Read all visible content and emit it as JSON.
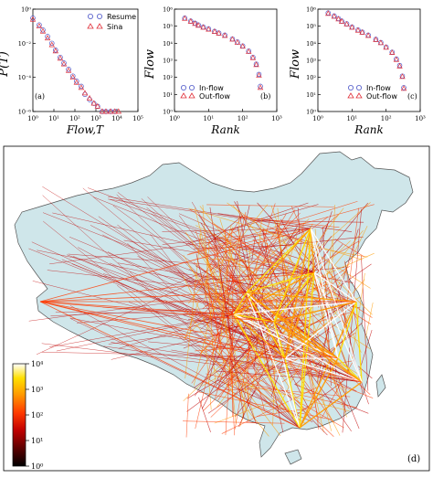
{
  "chart_data": [
    {
      "panel": "(a)",
      "type": "scatter",
      "xlabel": "Flow,T",
      "ylabel": "P(T)",
      "xscale": "log",
      "yscale": "log",
      "xlim": [
        1,
        100000
      ],
      "ylim": [
        1e-06,
        1
      ],
      "xticks": [
        "10⁰",
        "10¹",
        "10²",
        "10³",
        "10⁴",
        "10⁵"
      ],
      "yticks": [
        "10⁻⁶",
        "10⁻⁴",
        "10⁻²",
        "10⁰"
      ],
      "legend_position": "top-right",
      "series": [
        {
          "name": "Resume",
          "marker": "circle",
          "color": "#4b55c8",
          "x": [
            1,
            2,
            3,
            5,
            8,
            12,
            20,
            30,
            50,
            80,
            120,
            200,
            300,
            500,
            800,
            1200,
            2000,
            3000,
            5000,
            8000
          ],
          "y": [
            0.3,
            0.12,
            0.06,
            0.025,
            0.01,
            0.004,
            0.0015,
            0.0007,
            0.0003,
            0.00012,
            6e-05,
            3e-05,
            1e-05,
            5e-06,
            3e-06,
            2e-06,
            1e-06,
            1e-06,
            1e-06,
            1e-06
          ]
        },
        {
          "name": "Sina",
          "marker": "triangle",
          "color": "#e0303a",
          "x": [
            1,
            2,
            3,
            5,
            8,
            12,
            20,
            30,
            50,
            80,
            120,
            200,
            300,
            500,
            800,
            1200,
            2000,
            3000,
            5000,
            8000,
            12000
          ],
          "y": [
            0.25,
            0.1,
            0.05,
            0.02,
            0.008,
            0.0035,
            0.0013,
            0.0006,
            0.00025,
            0.0001,
            5e-05,
            2.5e-05,
            1.2e-05,
            6e-06,
            3e-06,
            2e-06,
            1e-06,
            1e-06,
            1e-06,
            1e-06,
            1e-06
          ]
        }
      ]
    },
    {
      "panel": "(b)",
      "type": "scatter",
      "xlabel": "Rank",
      "ylabel": "Flow",
      "xscale": "log",
      "yscale": "log",
      "xlim": [
        1,
        1000
      ],
      "ylim": [
        1,
        1000000
      ],
      "xticks": [
        "10⁰",
        "10¹",
        "10²",
        "10³"
      ],
      "yticks": [
        "10⁰",
        "10¹",
        "10²",
        "10³",
        "10⁴",
        "10⁵",
        "10⁶"
      ],
      "legend_position": "bottom-left",
      "series": [
        {
          "name": "In-flow",
          "marker": "circle",
          "color": "#4b55c8",
          "x": [
            2,
            3,
            4,
            5,
            7,
            10,
            15,
            20,
            30,
            50,
            70,
            100,
            150,
            200,
            250,
            300,
            330
          ],
          "y": [
            300000,
            200000,
            150000,
            120000,
            90000,
            70000,
            50000,
            40000,
            30000,
            18000,
            12000,
            7000,
            3500,
            1500,
            600,
            150,
            30
          ]
        },
        {
          "name": "Out-flow",
          "marker": "triangle",
          "color": "#e0303a",
          "x": [
            2,
            3,
            4,
            5,
            7,
            10,
            15,
            20,
            30,
            50,
            70,
            100,
            150,
            200,
            250,
            300,
            330
          ],
          "y": [
            280000,
            190000,
            140000,
            110000,
            85000,
            65000,
            48000,
            38000,
            28000,
            17000,
            11000,
            6500,
            3200,
            1400,
            550,
            130,
            25
          ]
        }
      ]
    },
    {
      "panel": "(c)",
      "type": "scatter",
      "xlabel": "Rank",
      "ylabel": "Flow",
      "xscale": "log",
      "yscale": "log",
      "xlim": [
        1,
        1000
      ],
      "ylim": [
        1,
        1000000
      ],
      "xticks": [
        "10⁰",
        "10¹",
        "10²",
        "10³"
      ],
      "yticks": [
        "10⁰",
        "10¹",
        "10²",
        "10³",
        "10⁴",
        "10⁵",
        "10⁶"
      ],
      "legend_position": "bottom-right",
      "series": [
        {
          "name": "In-flow",
          "marker": "circle",
          "color": "#4b55c8",
          "x": [
            2,
            3,
            4,
            5,
            7,
            10,
            15,
            20,
            30,
            50,
            70,
            100,
            150,
            200,
            250,
            300,
            330
          ],
          "y": [
            600000,
            400000,
            280000,
            200000,
            140000,
            90000,
            60000,
            45000,
            30000,
            17000,
            11000,
            6000,
            3000,
            1200,
            500,
            120,
            25
          ]
        },
        {
          "name": "Out-flow",
          "marker": "triangle",
          "color": "#e0303a",
          "x": [
            2,
            3,
            4,
            5,
            7,
            10,
            15,
            20,
            30,
            50,
            70,
            100,
            150,
            200,
            250,
            300,
            330
          ],
          "y": [
            550000,
            370000,
            260000,
            190000,
            130000,
            85000,
            57000,
            43000,
            28000,
            16000,
            10500,
            5700,
            2800,
            1100,
            450,
            110,
            22
          ]
        }
      ]
    },
    {
      "panel": "(d)",
      "type": "heatmap",
      "description_kind": "flow-network-map",
      "colorbar": {
        "scale": "log",
        "range": [
          1,
          10000
        ],
        "ticks": [
          "10⁰",
          "10¹",
          "10²",
          "10³",
          "10⁴"
        ],
        "colormap": [
          "#000000",
          "#5a0000",
          "#c00000",
          "#ff3a00",
          "#ff9a00",
          "#ffe000",
          "#ffffff"
        ]
      },
      "map_fill": "#cfe6ea",
      "map_stroke": "#555555"
    }
  ]
}
